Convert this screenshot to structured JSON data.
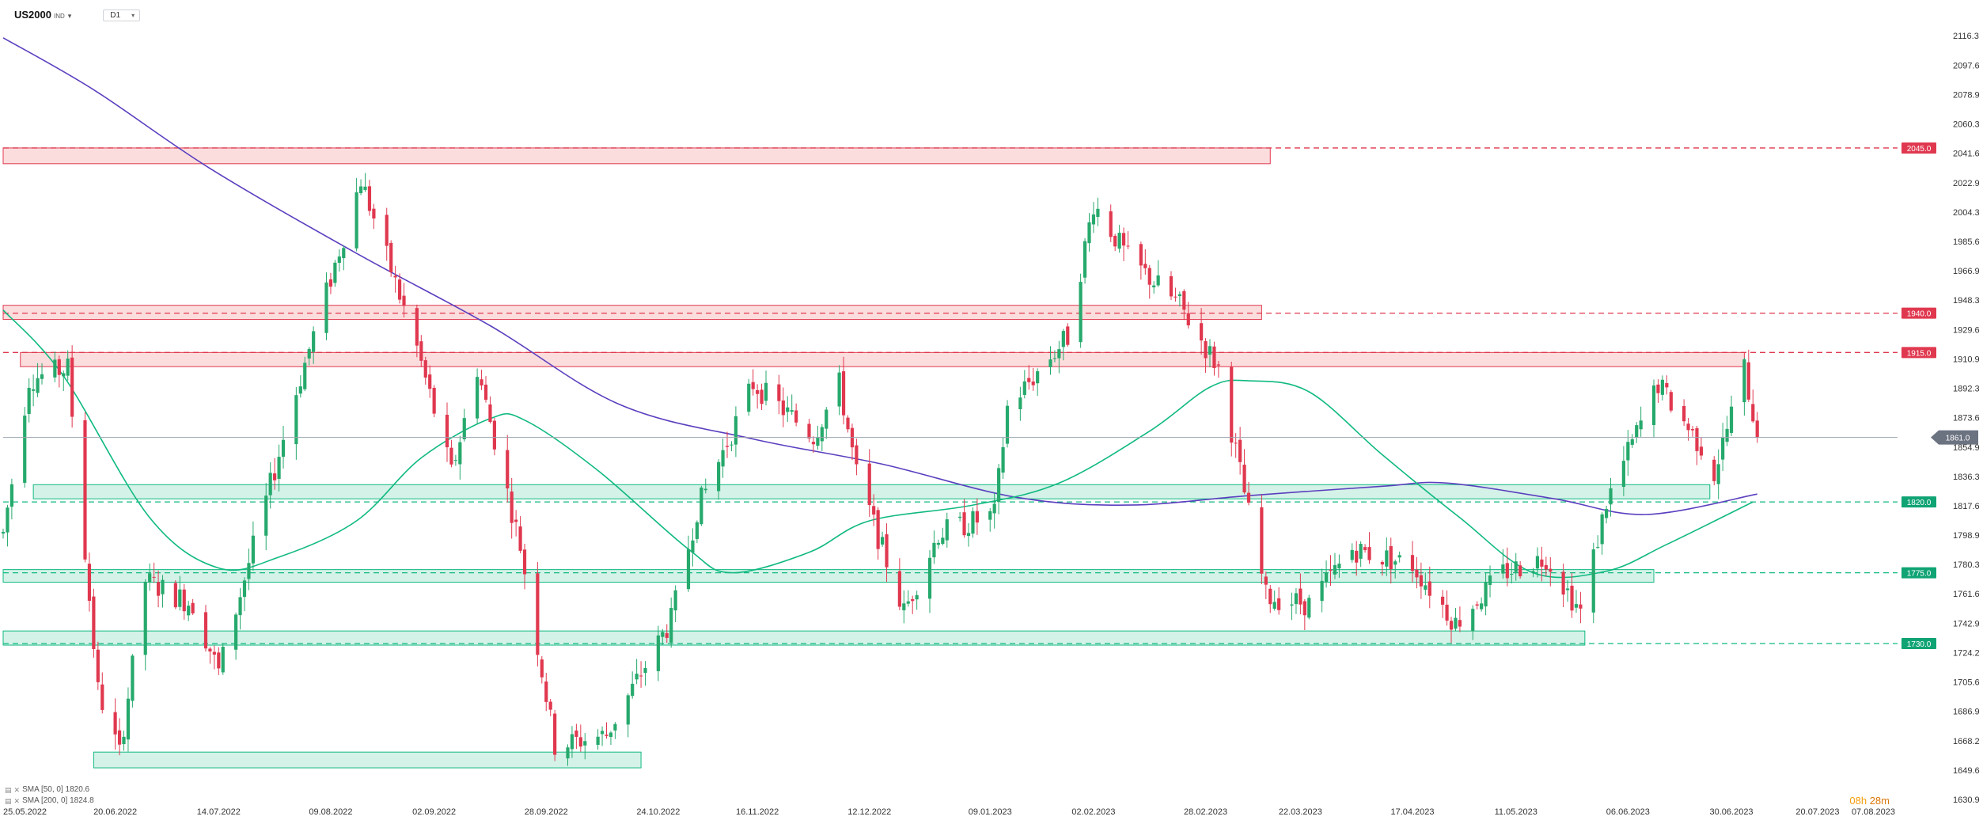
{
  "header": {
    "symbol": "US2000",
    "symbol_type": "IND",
    "timeframe": "D1"
  },
  "countdown": {
    "hours": "08h",
    "minutes": "28m"
  },
  "legend": [
    {
      "text": "SMA [50, 0] 1820.6",
      "color": "#10b981"
    },
    {
      "text": "SMA [200, 0] 1824.8",
      "color": "#5b3fbf"
    }
  ],
  "chart_data": {
    "type": "candlestick",
    "ylim": [
      1630.9,
      2130.0
    ],
    "y_ticks": [
      2116.3,
      2097.6,
      2078.9,
      2060.3,
      2041.6,
      2022.9,
      2004.3,
      1985.6,
      1966.9,
      1948.3,
      1929.6,
      1910.9,
      1892.3,
      1873.6,
      1854.9,
      1836.3,
      1817.6,
      1798.9,
      1780.3,
      1761.6,
      1742.9,
      1724.2,
      1705.6,
      1686.9,
      1668.2,
      1649.6,
      1630.9
    ],
    "x_range": [
      "2022-05-25",
      "2023-08-07"
    ],
    "x_ticks": [
      "25.05.2022",
      "20.06.2022",
      "14.07.2022",
      "09.08.2022",
      "02.09.2022",
      "28.09.2022",
      "24.10.2022",
      "16.11.2022",
      "12.12.2022",
      "09.01.2023",
      "02.02.2023",
      "28.02.2023",
      "22.03.2023",
      "17.04.2023",
      "11.05.2023",
      "06.06.2023",
      "30.06.2023",
      "20.07.2023",
      "07.08.2023"
    ],
    "current_price": 1861.0,
    "colors": {
      "up": "#26a96c",
      "down": "#e0384f",
      "resistance": "#e0384f",
      "support": "#10b981",
      "sma50": "#10b981",
      "sma200": "#5b3fbf"
    },
    "levels": [
      {
        "value": 2045.0,
        "label": "2045.0",
        "kind": "resistance"
      },
      {
        "value": 1940.0,
        "label": "1940.0",
        "kind": "resistance"
      },
      {
        "value": 1915.0,
        "label": "1915.0",
        "kind": "resistance"
      },
      {
        "value": 1820.0,
        "label": "1820.0",
        "kind": "support"
      },
      {
        "value": 1775.0,
        "label": "1775.0",
        "kind": "support"
      },
      {
        "value": 1730.0,
        "label": "1730.0",
        "kind": "support"
      }
    ],
    "zones": [
      {
        "from": "2022-05-25",
        "to": "2023-03-15",
        "low": 2035,
        "high": 2045,
        "kind": "resistance"
      },
      {
        "from": "2022-05-25",
        "to": "2023-03-13",
        "low": 1936,
        "high": 1945,
        "kind": "resistance"
      },
      {
        "from": "2022-05-29",
        "to": "2023-07-03",
        "low": 1906,
        "high": 1915,
        "kind": "resistance"
      },
      {
        "from": "2022-06-01",
        "to": "2023-06-25",
        "low": 1822,
        "high": 1831,
        "kind": "support"
      },
      {
        "from": "2022-05-25",
        "to": "2023-06-12",
        "low": 1769,
        "high": 1777,
        "kind": "support"
      },
      {
        "from": "2022-05-25",
        "to": "2023-05-27",
        "low": 1729,
        "high": 1738,
        "kind": "support"
      },
      {
        "from": "2022-06-15",
        "to": "2022-10-20",
        "low": 1651,
        "high": 1661,
        "kind": "support"
      }
    ],
    "price_anchors": [
      [
        "2022-05-25",
        1800
      ],
      [
        "2022-05-31",
        1898
      ],
      [
        "2022-06-09",
        1905
      ],
      [
        "2022-06-16",
        1700
      ],
      [
        "2022-06-21",
        1660
      ],
      [
        "2022-06-27",
        1770
      ],
      [
        "2022-07-08",
        1755
      ],
      [
        "2022-07-14",
        1712
      ],
      [
        "2022-08-01",
        1890
      ],
      [
        "2022-08-16",
        2025
      ],
      [
        "2022-08-29",
        1918
      ],
      [
        "2022-09-06",
        1838
      ],
      [
        "2022-09-12",
        1905
      ],
      [
        "2022-09-22",
        1792
      ],
      [
        "2022-09-30",
        1665
      ],
      [
        "2022-10-12",
        1672
      ],
      [
        "2022-10-27",
        1745
      ],
      [
        "2022-11-02",
        1815
      ],
      [
        "2022-11-15",
        1895
      ],
      [
        "2022-11-29",
        1862
      ],
      [
        "2022-12-05",
        1895
      ],
      [
        "2022-12-09",
        1838
      ],
      [
        "2022-12-20",
        1750
      ],
      [
        "2022-12-28",
        1800
      ],
      [
        "2023-01-10",
        1812
      ],
      [
        "2023-01-13",
        1880
      ],
      [
        "2023-01-27",
        1925
      ],
      [
        "2023-02-02",
        2010
      ],
      [
        "2023-02-10",
        1975
      ],
      [
        "2023-02-22",
        1945
      ],
      [
        "2023-03-03",
        1905
      ],
      [
        "2023-03-14",
        1760
      ],
      [
        "2023-03-24",
        1755
      ],
      [
        "2023-04-03",
        1790
      ],
      [
        "2023-04-17",
        1780
      ],
      [
        "2023-04-27",
        1743
      ],
      [
        "2023-05-08",
        1775
      ],
      [
        "2023-05-18",
        1785
      ],
      [
        "2023-05-26",
        1750
      ],
      [
        "2023-06-01",
        1820
      ],
      [
        "2023-06-13",
        1895
      ],
      [
        "2023-06-23",
        1855
      ],
      [
        "2023-06-26",
        1838
      ],
      [
        "2023-07-03",
        1905
      ],
      [
        "2023-07-06",
        1861
      ]
    ],
    "sma50": [
      [
        "2022-05-25",
        1942
      ],
      [
        "2022-06-08",
        1900
      ],
      [
        "2022-06-28",
        1810
      ],
      [
        "2022-07-14",
        1778
      ],
      [
        "2022-07-28",
        1785
      ],
      [
        "2022-08-15",
        1808
      ],
      [
        "2022-08-30",
        1848
      ],
      [
        "2022-09-15",
        1873
      ],
      [
        "2022-09-23",
        1872
      ],
      [
        "2022-10-10",
        1840
      ],
      [
        "2022-10-31",
        1790
      ],
      [
        "2022-11-10",
        1775
      ],
      [
        "2022-11-28",
        1788
      ],
      [
        "2022-12-12",
        1808
      ],
      [
        "2023-01-05",
        1818
      ],
      [
        "2023-01-25",
        1832
      ],
      [
        "2023-02-15",
        1865
      ],
      [
        "2023-03-01",
        1893
      ],
      [
        "2023-03-10",
        1897
      ],
      [
        "2023-03-24",
        1890
      ],
      [
        "2023-04-10",
        1850
      ],
      [
        "2023-04-28",
        1810
      ],
      [
        "2023-05-15",
        1775
      ],
      [
        "2023-06-01",
        1776
      ],
      [
        "2023-06-15",
        1793
      ],
      [
        "2023-07-05",
        1820
      ]
    ],
    "sma200": [
      [
        "2022-05-25",
        2115
      ],
      [
        "2022-06-15",
        2082
      ],
      [
        "2022-07-12",
        2032
      ],
      [
        "2022-08-15",
        1978
      ],
      [
        "2022-09-15",
        1932
      ],
      [
        "2022-10-15",
        1882
      ],
      [
        "2022-11-15",
        1860
      ],
      [
        "2022-12-15",
        1844
      ],
      [
        "2023-01-15",
        1823
      ],
      [
        "2023-02-10",
        1818
      ],
      [
        "2023-03-10",
        1824
      ],
      [
        "2023-04-10",
        1830
      ],
      [
        "2023-04-25",
        1832
      ],
      [
        "2023-05-20",
        1822
      ],
      [
        "2023-06-10",
        1812
      ],
      [
        "2023-07-06",
        1825
      ]
    ]
  }
}
